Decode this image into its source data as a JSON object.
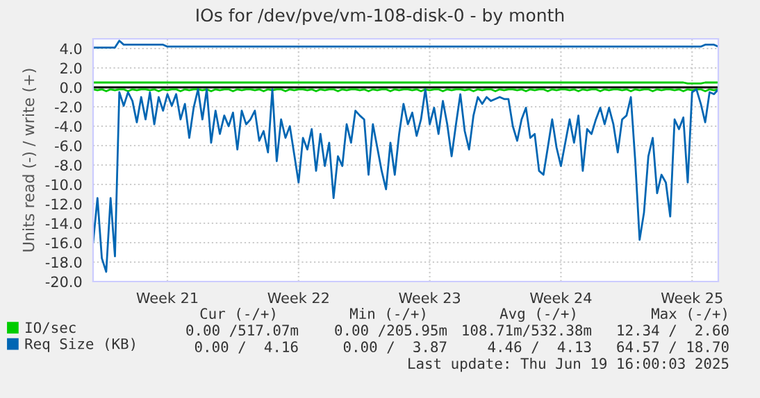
{
  "chart_data": {
    "type": "line",
    "title": "IOs for /dev/pve/vm-108-disk-0 - by month",
    "ylabel": "Units read (-) / write (+)",
    "categories": [
      null,
      null,
      null,
      null,
      null,
      null,
      null,
      null,
      null,
      null,
      null,
      null,
      null,
      null,
      null,
      null,
      null,
      "Week 21",
      null,
      null,
      null,
      null,
      null,
      null,
      null,
      null,
      null,
      null,
      null,
      null,
      null,
      null,
      null,
      null,
      null,
      null,
      null,
      null,
      null,
      null,
      null,
      null,
      null,
      null,
      null,
      null,
      null,
      "Week 22",
      null,
      null,
      null,
      null,
      null,
      null,
      null,
      null,
      null,
      null,
      null,
      null,
      null,
      null,
      null,
      null,
      null,
      null,
      null,
      null,
      null,
      null,
      null,
      null,
      null,
      null,
      null,
      null,
      null,
      "Week 23",
      null,
      null,
      null,
      null,
      null,
      null,
      null,
      null,
      null,
      null,
      null,
      null,
      null,
      null,
      null,
      null,
      null,
      null,
      null,
      null,
      null,
      null,
      null,
      null,
      null,
      null,
      null,
      null,
      null,
      "Week 24",
      null,
      null,
      null,
      null,
      null,
      null,
      null,
      null,
      null,
      null,
      null,
      null,
      null,
      null,
      null,
      null,
      null,
      null,
      null,
      null,
      null,
      null,
      null,
      null,
      null,
      null,
      null,
      null,
      null,
      "Week 25",
      null,
      null,
      null,
      null,
      null,
      null
    ],
    "ylim": [
      -20,
      5.0
    ],
    "yticks": [
      {
        "value": 4,
        "label": "4.0"
      },
      {
        "value": 2,
        "label": "2.0"
      },
      {
        "value": 0,
        "label": "0.0"
      },
      {
        "value": -2,
        "label": "-2.0"
      },
      {
        "value": -4,
        "label": "-4.0"
      },
      {
        "value": -6,
        "label": "-6.0"
      },
      {
        "value": -8,
        "label": "-8.0"
      },
      {
        "value": -10,
        "label": "-10.0"
      },
      {
        "value": -12,
        "label": "-12.0"
      },
      {
        "value": -14,
        "label": "-14.0"
      },
      {
        "value": -16,
        "label": "-16.0"
      },
      {
        "value": -18,
        "label": "-18.0"
      },
      {
        "value": -20,
        "label": "-20.0"
      }
    ],
    "grid": true,
    "legend": "bottom",
    "marker": "none",
    "line_style": "solid",
    "ref_lines": [
      {
        "axis": "y",
        "value": 0,
        "color": "#000000"
      }
    ],
    "series": [
      {
        "name": "IO/sec",
        "color": "#00cc00",
        "values": [
          -0.2,
          -0.3,
          -0.2,
          -0.4,
          -0.2,
          -0.3,
          -0.2,
          -0.2,
          -0.4,
          -0.2,
          -0.3,
          -0.2,
          -0.2,
          -0.3,
          -0.2,
          -0.4,
          -0.2,
          -0.3,
          -0.2,
          -0.2,
          -0.4,
          -0.2,
          -0.3,
          -0.2,
          -0.2,
          -0.3,
          -0.2,
          -0.4,
          -0.2,
          -0.3,
          -0.2,
          -0.2,
          -0.4,
          -0.2,
          -0.3,
          -0.2,
          -0.2,
          -0.3,
          -0.2,
          -0.4,
          -0.2,
          -0.3,
          -0.2,
          -0.2,
          -0.4,
          -0.2,
          -0.3,
          -0.2,
          -0.2,
          -0.3,
          -0.2,
          -0.4,
          -0.2,
          -0.3,
          -0.2,
          -0.2,
          -0.4,
          -0.2,
          -0.3,
          -0.2,
          -0.2,
          -0.3,
          -0.2,
          -0.4,
          -0.2,
          -0.3,
          -0.2,
          -0.2,
          -0.4,
          -0.2,
          -0.3,
          -0.2,
          -0.2,
          -0.3,
          -0.2,
          -0.4,
          -0.2,
          -0.3,
          -0.2,
          -0.2,
          -0.4,
          -0.2,
          -0.3,
          -0.2,
          -0.2,
          -0.3,
          -0.2,
          -0.4,
          -0.2,
          -0.3,
          -0.2,
          -0.2,
          -0.4,
          -0.2,
          -0.3,
          -0.2,
          -0.2,
          -0.3,
          -0.2,
          -0.4,
          -0.2,
          -0.3,
          -0.2,
          -0.2,
          -0.4,
          -0.2,
          -0.3,
          -0.2,
          -0.2,
          -0.3,
          -0.2,
          -0.4,
          -0.2,
          -0.3,
          -0.2,
          -0.2,
          -0.4,
          -0.2,
          -0.3,
          -0.2,
          -0.2,
          -0.3,
          -0.2,
          -0.4,
          -0.2,
          -0.3,
          -0.2,
          -0.2,
          -0.4,
          -0.2,
          -0.3,
          -0.2,
          -0.2,
          -0.3,
          -0.2,
          -0.4,
          -0.2,
          -0.3,
          -0.2,
          -0.2,
          -0.4,
          -0.2,
          -0.3,
          -0.2
        ]
      },
      {
        "color": "#00cc00",
        "values": [
          0.5,
          0.5,
          0.5,
          0.5,
          0.5,
          0.5,
          0.5,
          0.5,
          0.5,
          0.5,
          0.5,
          0.5,
          0.5,
          0.5,
          0.5,
          0.5,
          0.5,
          0.5,
          0.5,
          0.5,
          0.5,
          0.5,
          0.5,
          0.5,
          0.5,
          0.5,
          0.5,
          0.5,
          0.5,
          0.5,
          0.5,
          0.5,
          0.5,
          0.5,
          0.5,
          0.5,
          0.5,
          0.5,
          0.5,
          0.5,
          0.5,
          0.5,
          0.5,
          0.5,
          0.5,
          0.5,
          0.5,
          0.5,
          0.5,
          0.5,
          0.5,
          0.5,
          0.5,
          0.5,
          0.5,
          0.5,
          0.5,
          0.5,
          0.5,
          0.5,
          0.5,
          0.5,
          0.5,
          0.5,
          0.5,
          0.5,
          0.5,
          0.5,
          0.5,
          0.5,
          0.5,
          0.5,
          0.5,
          0.5,
          0.5,
          0.5,
          0.5,
          0.5,
          0.5,
          0.5,
          0.5,
          0.5,
          0.5,
          0.5,
          0.5,
          0.5,
          0.5,
          0.5,
          0.5,
          0.5,
          0.5,
          0.5,
          0.5,
          0.5,
          0.5,
          0.5,
          0.5,
          0.5,
          0.5,
          0.5,
          0.5,
          0.5,
          0.5,
          0.5,
          0.5,
          0.5,
          0.5,
          0.5,
          0.5,
          0.5,
          0.5,
          0.5,
          0.5,
          0.5,
          0.5,
          0.5,
          0.5,
          0.5,
          0.5,
          0.5,
          0.5,
          0.5,
          0.5,
          0.5,
          0.5,
          0.5,
          0.5,
          0.5,
          0.5,
          0.5,
          0.5,
          0.5,
          0.5,
          0.5,
          0.5,
          0.5,
          0.4,
          0.4,
          0.4,
          0.4,
          0.5,
          0.5,
          0.5,
          0.5
        ]
      },
      {
        "name": "Req Size (KB)",
        "color": "#0066b3",
        "values": [
          -16.0,
          -11.4,
          -17.6,
          -19.0,
          -11.4,
          -17.4,
          -0.5,
          -1.9,
          -0.5,
          -1.4,
          -3.6,
          -1.0,
          -3.3,
          -0.5,
          -3.8,
          -1.0,
          -2.4,
          -0.7,
          -1.9,
          -0.7,
          -3.3,
          -1.7,
          -5.2,
          -2.1,
          -0.2,
          -3.3,
          -0.2,
          -5.7,
          -2.4,
          -4.8,
          -2.9,
          -4.0,
          -2.6,
          -6.4,
          -2.4,
          -3.8,
          -3.3,
          -2.4,
          -5.5,
          -4.5,
          -6.7,
          -0.2,
          -7.6,
          -3.3,
          -5.2,
          -4.0,
          -6.9,
          -9.8,
          -5.2,
          -6.4,
          -4.3,
          -8.6,
          -4.8,
          -8.1,
          -5.7,
          -11.4,
          -7.1,
          -8.1,
          -3.8,
          -5.7,
          -2.4,
          -2.9,
          -3.3,
          -9.0,
          -3.8,
          -6.2,
          -8.6,
          -10.5,
          -5.7,
          -9.0,
          -4.8,
          -1.7,
          -3.8,
          -2.6,
          -5.0,
          -3.3,
          -0.2,
          -3.8,
          -2.1,
          -4.8,
          -1.4,
          -3.8,
          -7.1,
          -3.8,
          -0.7,
          -4.5,
          -6.4,
          -2.9,
          -1.0,
          -1.7,
          -1.0,
          -1.4,
          -1.2,
          -1.0,
          -1.2,
          -1.2,
          -4.0,
          -5.5,
          -3.3,
          -2.1,
          -5.2,
          -4.8,
          -8.6,
          -9.0,
          -6.2,
          -3.3,
          -6.2,
          -8.1,
          -5.7,
          -3.3,
          -5.7,
          -2.9,
          -8.6,
          -4.3,
          -4.8,
          -3.3,
          -2.1,
          -3.8,
          -2.1,
          -3.8,
          -6.7,
          -3.3,
          -2.9,
          -1.0,
          -7.6,
          -15.7,
          -12.9,
          -7.1,
          -5.2,
          -10.9,
          -9.0,
          -9.8,
          -13.3,
          -3.3,
          -4.3,
          -3.1,
          -9.8,
          -0.5,
          -0.2,
          -1.7,
          -3.6,
          -0.5,
          -0.7,
          -0.2
        ]
      },
      {
        "color": "#0066b3",
        "values": [
          4.1,
          4.1,
          4.1,
          4.1,
          4.1,
          4.1,
          4.8,
          4.4,
          4.4,
          4.4,
          4.4,
          4.4,
          4.4,
          4.4,
          4.4,
          4.4,
          4.4,
          4.2,
          4.2,
          4.2,
          4.2,
          4.2,
          4.2,
          4.2,
          4.2,
          4.2,
          4.2,
          4.2,
          4.2,
          4.2,
          4.2,
          4.2,
          4.2,
          4.2,
          4.2,
          4.2,
          4.2,
          4.2,
          4.2,
          4.2,
          4.2,
          4.2,
          4.2,
          4.2,
          4.2,
          4.2,
          4.2,
          4.2,
          4.2,
          4.2,
          4.2,
          4.2,
          4.2,
          4.2,
          4.2,
          4.2,
          4.2,
          4.2,
          4.2,
          4.2,
          4.2,
          4.2,
          4.2,
          4.2,
          4.2,
          4.2,
          4.2,
          4.2,
          4.2,
          4.2,
          4.2,
          4.2,
          4.2,
          4.2,
          4.2,
          4.2,
          4.2,
          4.2,
          4.2,
          4.2,
          4.2,
          4.2,
          4.2,
          4.2,
          4.2,
          4.2,
          4.2,
          4.2,
          4.2,
          4.2,
          4.2,
          4.2,
          4.2,
          4.2,
          4.2,
          4.2,
          4.2,
          4.2,
          4.2,
          4.2,
          4.2,
          4.2,
          4.2,
          4.2,
          4.2,
          4.2,
          4.2,
          4.2,
          4.2,
          4.2,
          4.2,
          4.2,
          4.2,
          4.2,
          4.2,
          4.2,
          4.2,
          4.2,
          4.2,
          4.2,
          4.2,
          4.2,
          4.2,
          4.2,
          4.2,
          4.2,
          4.2,
          4.2,
          4.2,
          4.2,
          4.2,
          4.2,
          4.2,
          4.2,
          4.2,
          4.2,
          4.2,
          4.2,
          4.2,
          4.2,
          4.4,
          4.4,
          4.4,
          4.2
        ]
      }
    ],
    "annotations": [
      "Cur (-/+)",
      "Min (-/+)",
      "Avg (-/+)",
      "Max (-/+)",
      "0.00 /517.07m",
      "0.00 /205.95m",
      "108.71m/532.38m",
      "12.34 /  2.60",
      "0.00 /  4.16",
      "0.00 /  3.87",
      "4.46 /  4.13",
      "64.57 / 18.70",
      "Last update: Thu Jun 19 16:00:03 2025"
    ]
  }
}
